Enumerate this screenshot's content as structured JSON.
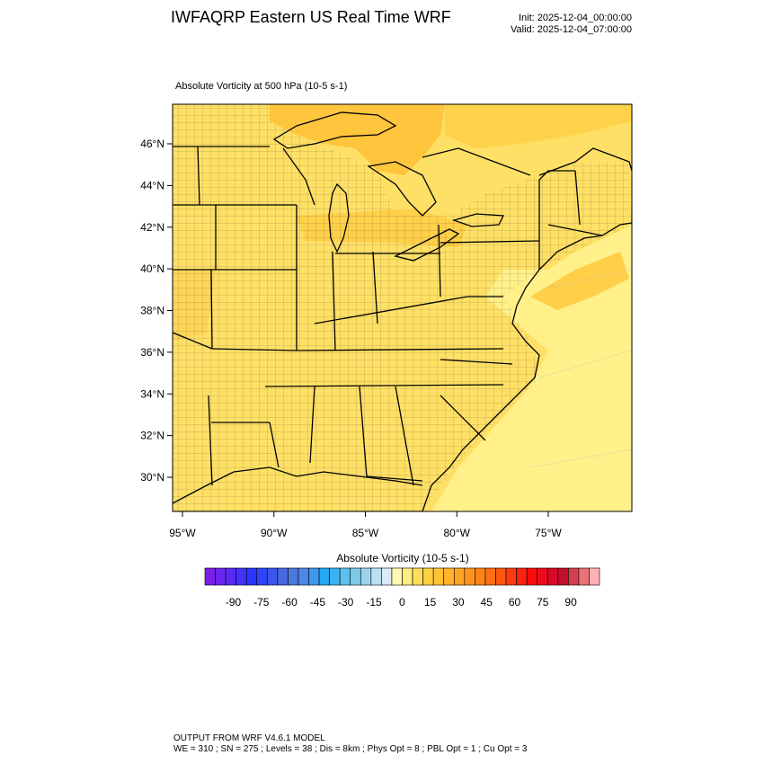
{
  "header": {
    "title": "IWFAQRP Eastern US Real Time WRF",
    "init": "Init: 2025-12-04_00:00:00",
    "valid": "Valid: 2025-12-04_07:00:00"
  },
  "map": {
    "title": "Absolute Vorticity at 500 hPa   (10-5 s-1)",
    "lat_labels": [
      "46°N",
      "44°N",
      "42°N",
      "40°N",
      "38°N",
      "36°N",
      "34°N",
      "32°N",
      "30°N"
    ],
    "lat_values": [
      46,
      44,
      42,
      40,
      38,
      36,
      34,
      32,
      30
    ],
    "lon_labels": [
      "95°W",
      "90°W",
      "85°W",
      "80°W",
      "75°W"
    ],
    "lon_values": [
      -95,
      -90,
      -85,
      -80,
      -75
    ],
    "colors": {
      "field_base": "#ffe066",
      "field_light": "#fff08a",
      "field_orange": "#ffc53d",
      "border": "#000000"
    }
  },
  "legend": {
    "title": "Absolute Vorticity  (10-5 s-1)",
    "tick_labels": [
      "-90",
      "-75",
      "-60",
      "-45",
      "-30",
      "-15",
      "0",
      "15",
      "30",
      "45",
      "60",
      "75",
      "90"
    ],
    "colors": [
      "#7a1ee6",
      "#6a24ee",
      "#5a2af4",
      "#4331f8",
      "#2a35ff",
      "#2f44f6",
      "#3a57ea",
      "#4668e0",
      "#4c78de",
      "#4f88e6",
      "#3f98f0",
      "#24a8f4",
      "#3ab4f0",
      "#5cc0ee",
      "#7ccae8",
      "#9cd4ec",
      "#bce0f2",
      "#d8ecf8",
      "#fff7b4",
      "#ffec80",
      "#ffde5c",
      "#ffd040",
      "#ffc236",
      "#ffb42c",
      "#ffa424",
      "#ff941c",
      "#ff8414",
      "#ff6e10",
      "#ff5610",
      "#ff3c10",
      "#ff2210",
      "#ff0a0a",
      "#ee0a1c",
      "#d80a28",
      "#c0102e",
      "#d44050",
      "#ec7078",
      "#ffb0b4"
    ]
  },
  "footer": {
    "line1": "OUTPUT FROM WRF V4.6.1 MODEL",
    "line2": "WE = 310 ; SN = 275 ; Levels = 38 ; Dis = 8km ; Phys Opt = 8 ; PBL Opt = 1 ; Cu Opt = 3"
  }
}
